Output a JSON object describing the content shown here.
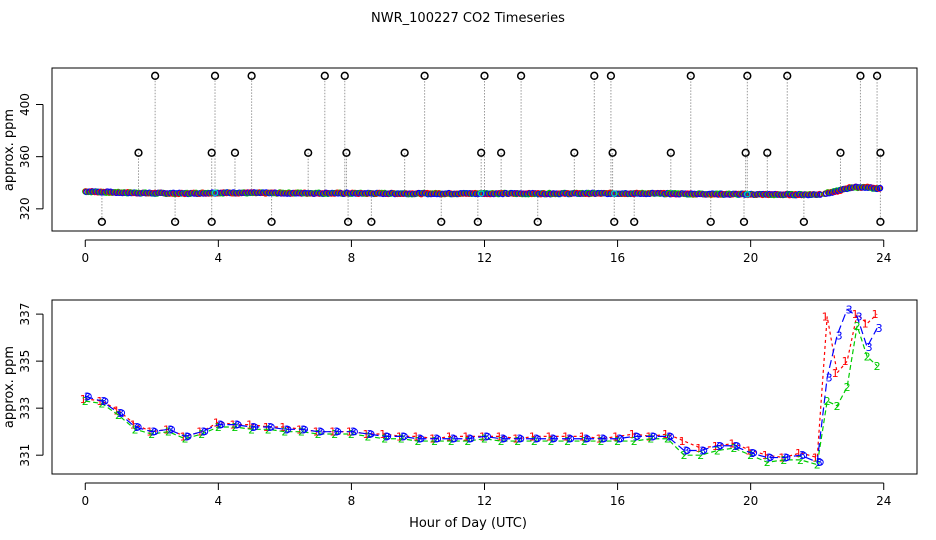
{
  "chart_data": [
    {
      "type": "scatter",
      "title": "NWR_100227  CO2 Timeseries",
      "ylabel": "approx. ppm",
      "xlim": [
        -1,
        25
      ],
      "ylim": [
        303,
        428
      ],
      "x_ticks": [
        0,
        4,
        8,
        12,
        16,
        20,
        24
      ],
      "y_ticks": [
        320,
        360,
        400
      ],
      "grid": false,
      "baseline": {
        "x": [
          0,
          1,
          2,
          3,
          4,
          5,
          6,
          7,
          8,
          9,
          10,
          11,
          12,
          13,
          14,
          15,
          16,
          17,
          18,
          19,
          20,
          21,
          22,
          22.5,
          23,
          23.5,
          23.8
        ],
        "y": [
          333.3,
          332.5,
          332,
          331.8,
          332.3,
          332.2,
          332.1,
          332,
          331.9,
          331.8,
          331.7,
          331.7,
          331.8,
          331.7,
          331.7,
          331.8,
          331.8,
          331.8,
          331.5,
          331.3,
          331.1,
          330.9,
          331,
          333,
          336.5,
          336.5,
          335.5
        ]
      },
      "spikes_high": [
        2.1,
        3.9,
        5.0,
        7.2,
        7.8,
        10.2,
        12.0,
        13.1,
        15.3,
        15.8,
        18.2,
        19.9,
        21.1,
        23.3,
        23.8
      ],
      "spikes_high_value": 422,
      "spikes_mid": [
        1.6,
        3.8,
        4.5,
        6.7,
        7.85,
        9.6,
        11.9,
        12.5,
        14.7,
        15.85,
        17.6,
        19.85,
        20.5,
        22.7,
        23.9
      ],
      "spikes_mid_value": 363,
      "spikes_low": [
        0.5,
        2.7,
        3.8,
        5.6,
        7.9,
        8.6,
        10.7,
        11.8,
        13.6,
        15.9,
        16.5,
        18.8,
        19.8,
        21.6,
        23.9
      ],
      "spikes_low_value": 310
    },
    {
      "type": "line",
      "xlabel": "Hour of Day (UTC)",
      "ylabel": "approx. ppm",
      "xlim": [
        -1,
        25
      ],
      "ylim": [
        330.2,
        337.6
      ],
      "x_ticks": [
        0,
        4,
        8,
        12,
        16,
        20,
        24
      ],
      "y_ticks": [
        331,
        333,
        335,
        337
      ],
      "grid": false,
      "series": [
        {
          "name": "1",
          "color": "#ff0000",
          "x": [
            0,
            0.5,
            1,
            1.5,
            2,
            2.5,
            3,
            3.5,
            4,
            4.5,
            5,
            5.5,
            6,
            6.5,
            7,
            7.5,
            8,
            8.5,
            9,
            9.5,
            10,
            10.5,
            11,
            11.5,
            12,
            12.5,
            13,
            13.5,
            14,
            14.5,
            15,
            15.5,
            16,
            16.5,
            17,
            17.5,
            18,
            18.5,
            19,
            19.5,
            20,
            20.5,
            21,
            21.5,
            22,
            22.3,
            22.6,
            22.9,
            23.2,
            23.5,
            23.8
          ],
          "y": [
            333.4,
            333.3,
            332.9,
            332.3,
            332.0,
            332.1,
            331.8,
            332.0,
            332.4,
            332.3,
            332.3,
            332.2,
            332.2,
            332.1,
            332.0,
            332.0,
            332.0,
            331.9,
            331.9,
            331.8,
            331.8,
            331.7,
            331.8,
            331.8,
            331.8,
            331.8,
            331.7,
            331.8,
            331.8,
            331.8,
            331.8,
            331.7,
            331.8,
            331.9,
            331.8,
            331.9,
            331.6,
            331.3,
            331.4,
            331.5,
            331.2,
            331.0,
            330.9,
            331.1,
            330.9,
            336.9,
            334.5,
            335.0,
            337.0,
            336.6,
            337.0
          ]
        },
        {
          "name": "2",
          "color": "#00cc00",
          "x": [
            0,
            0.5,
            1,
            1.5,
            2,
            2.5,
            3,
            3.5,
            4,
            4.5,
            5,
            5.5,
            6,
            6.5,
            7,
            7.5,
            8,
            8.5,
            9,
            9.5,
            10,
            10.5,
            11,
            11.5,
            12,
            12.5,
            13,
            13.5,
            14,
            14.5,
            15,
            15.5,
            16,
            16.5,
            17,
            17.5,
            18,
            18.5,
            19,
            19.5,
            20,
            20.5,
            21,
            21.5,
            22,
            22.3,
            22.6,
            22.9,
            23.2,
            23.5,
            23.8
          ],
          "y": [
            333.3,
            333.2,
            332.7,
            332.1,
            331.9,
            332.0,
            331.7,
            331.9,
            332.2,
            332.2,
            332.1,
            332.1,
            332.0,
            332.0,
            331.9,
            331.9,
            331.9,
            331.8,
            331.7,
            331.7,
            331.6,
            331.6,
            331.6,
            331.6,
            331.7,
            331.6,
            331.6,
            331.6,
            331.6,
            331.6,
            331.6,
            331.6,
            331.6,
            331.6,
            331.7,
            331.7,
            331.0,
            331.0,
            331.2,
            331.3,
            331.0,
            330.7,
            330.8,
            330.8,
            330.6,
            333.3,
            333.1,
            333.9,
            336.5,
            335.2,
            334.8
          ]
        },
        {
          "name": "3",
          "color": "#0000ff",
          "x": [
            0,
            0.5,
            1,
            1.5,
            2,
            2.5,
            3,
            3.5,
            4,
            4.5,
            5,
            5.5,
            6,
            6.5,
            7,
            7.5,
            8,
            8.5,
            9,
            9.5,
            10,
            10.5,
            11,
            11.5,
            12,
            12.5,
            13,
            13.5,
            14,
            14.5,
            15,
            15.5,
            16,
            16.5,
            17,
            17.5,
            18,
            18.5,
            19,
            19.5,
            20,
            20.5,
            21,
            21.5,
            22,
            22.3,
            22.6,
            22.9,
            23.2,
            23.5,
            23.8
          ],
          "y": [
            333.5,
            333.3,
            332.8,
            332.2,
            332.0,
            332.1,
            331.8,
            332.0,
            332.3,
            332.3,
            332.2,
            332.2,
            332.1,
            332.1,
            332.0,
            332.0,
            332.0,
            331.9,
            331.8,
            331.8,
            331.7,
            331.7,
            331.7,
            331.7,
            331.8,
            331.7,
            331.7,
            331.7,
            331.7,
            331.7,
            331.7,
            331.7,
            331.7,
            331.8,
            331.8,
            331.8,
            331.2,
            331.2,
            331.4,
            331.4,
            331.1,
            330.9,
            330.9,
            331.0,
            330.7,
            334.3,
            336.1,
            337.2,
            336.9,
            335.6,
            336.4
          ]
        }
      ]
    }
  ]
}
